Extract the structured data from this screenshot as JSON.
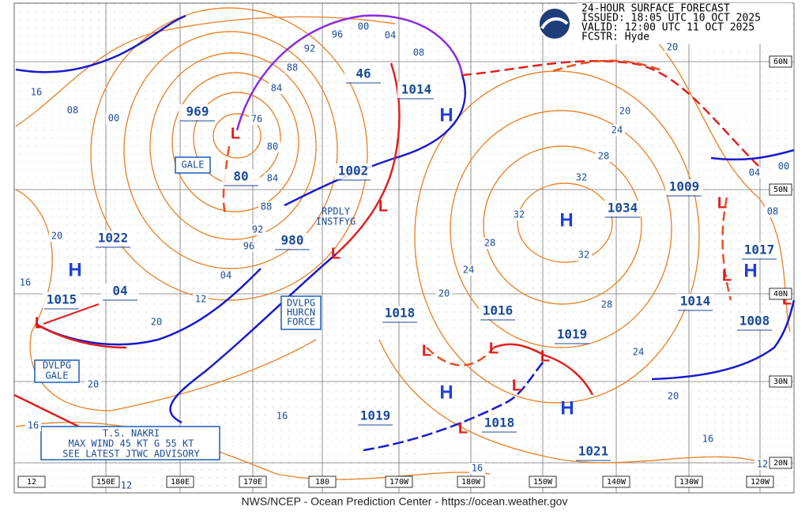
{
  "header": {
    "lines": [
      "24-HOUR SURFACE FORECAST",
      "ISSUED: 18:05 UTC 10 OCT 2025",
      "VALID:  12:00 UTC 11 OCT 2025",
      "FCSTR:  Hyde"
    ]
  },
  "footer": "NWS/NCEP - Ocean Prediction Center - https://ocean.weather.gov",
  "pressure_labels": [
    "969",
    "80",
    "1002",
    "46",
    "1014",
    "980",
    "1022",
    "04",
    "1015",
    "1018",
    "1016",
    "1019",
    "1019",
    "1018",
    "1021",
    "1034",
    "1009",
    "1017",
    "1014",
    "1008"
  ],
  "high_markers": [
    "H",
    "H",
    "H",
    "H",
    "H",
    "H"
  ],
  "low_markers": [
    "L",
    "L",
    "L",
    "L",
    "L",
    "L",
    "L",
    "L",
    "L",
    "L",
    "L",
    "L"
  ],
  "isobar_labels": [
    "08",
    "00",
    "16",
    "96",
    "00",
    "04",
    "08",
    "92",
    "88",
    "84",
    "76",
    "80",
    "84",
    "88",
    "92",
    "96",
    "04",
    "12",
    "20",
    "20",
    "16",
    "20",
    "16",
    "16",
    "20",
    "24",
    "28",
    "32",
    "32",
    "28",
    "24",
    "20",
    "32",
    "28",
    "24",
    "20",
    "16",
    "12",
    "16",
    "12",
    "20",
    "04",
    "00",
    "08"
  ],
  "lat_labels": [
    "60N",
    "50N",
    "40N",
    "30N",
    "20N"
  ],
  "lon_labels": [
    "12",
    "150E",
    "180E",
    "170E",
    "180",
    "170W",
    "180W",
    "150W",
    "140W",
    "130W",
    "120W"
  ],
  "boxes": [
    {
      "lines": [
        "GALE"
      ]
    },
    {
      "lines": [
        "RPDLY",
        "INSTFYG"
      ]
    },
    {
      "lines": [
        "DVLPG",
        "HURCN",
        "FORCE"
      ]
    },
    {
      "lines": [
        "DVLPG",
        "GALE"
      ]
    },
    {
      "lines": [
        "T.S. NAKRI",
        "MAX WIND 45 KT G 55 KT",
        "SEE LATEST JTWC ADVISORY"
      ]
    }
  ]
}
